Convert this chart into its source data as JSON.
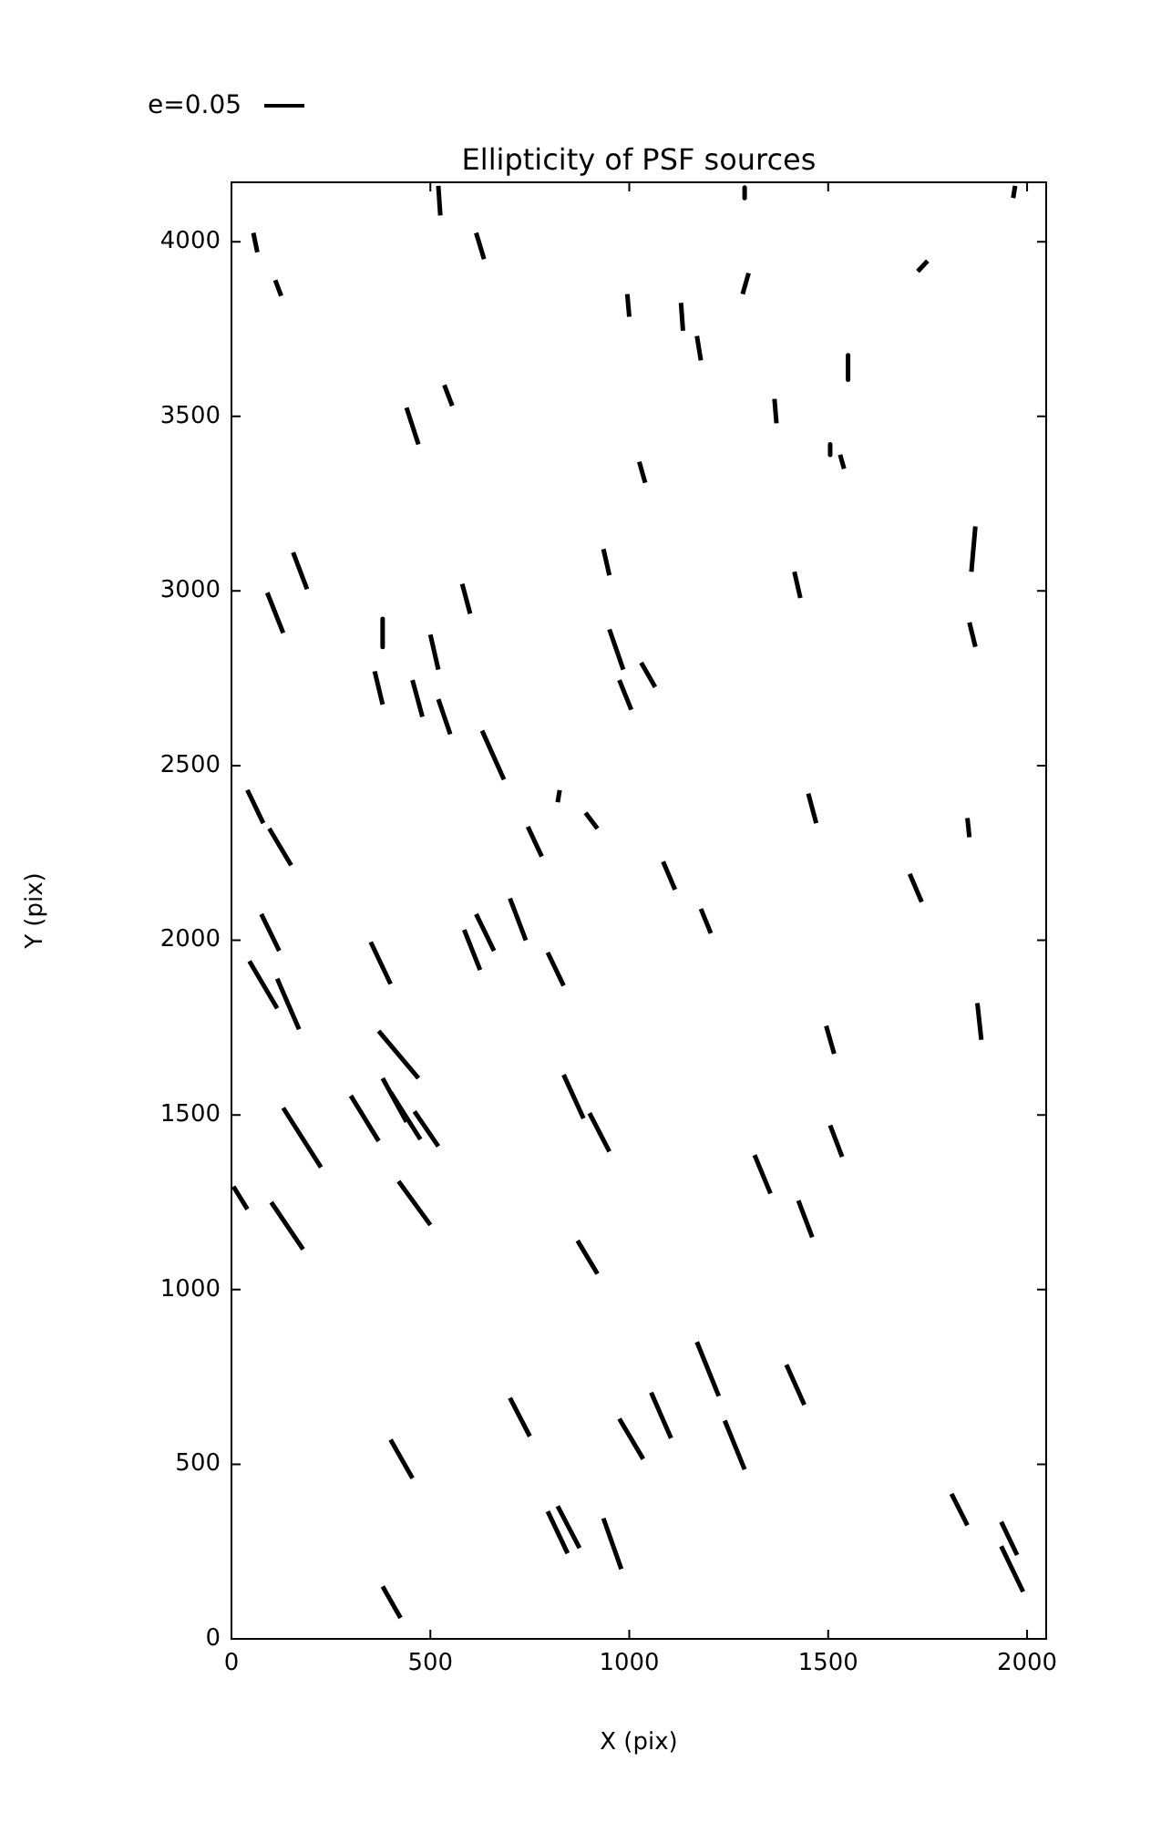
{
  "chart_data": {
    "type": "line",
    "title": "Ellipticity of PSF sources",
    "xlabel": "X (pix)",
    "ylabel": "Y (pix)",
    "xlim": [
      0,
      2048
    ],
    "ylim": [
      0,
      4170
    ],
    "xticks": [
      0,
      500,
      1000,
      1500,
      2000
    ],
    "yticks": [
      0,
      500,
      1000,
      1500,
      2000,
      2500,
      3000,
      3500,
      4000
    ],
    "marker": "none",
    "annotations": [
      "e=0.05"
    ],
    "series": [
      {
        "color": "#000000",
        "x": [
          55,
          65
        ],
        "values": [
          4025,
          3970
        ]
      },
      {
        "color": "#000000",
        "x": [
          110,
          125
        ],
        "values": [
          3890,
          3845
        ]
      },
      {
        "color": "#000000",
        "x": [
          520,
          525
        ],
        "values": [
          4160,
          4075
        ]
      },
      {
        "color": "#000000",
        "x": [
          615,
          635
        ],
        "values": [
          4025,
          3950
        ]
      },
      {
        "color": "#000000",
        "x": [
          995,
          1000
        ],
        "values": [
          3850,
          3785
        ]
      },
      {
        "color": "#000000",
        "x": [
          535,
          555
        ],
        "values": [
          3590,
          3530
        ]
      },
      {
        "color": "#000000",
        "x": [
          440,
          470
        ],
        "values": [
          3525,
          3420
        ]
      },
      {
        "color": "#000000",
        "x": [
          155,
          190
        ],
        "values": [
          3110,
          3005
        ]
      },
      {
        "color": "#000000",
        "x": [
          90,
          130
        ],
        "values": [
          2995,
          2880
        ]
      },
      {
        "color": "#000000",
        "x": [
          580,
          600
        ],
        "values": [
          3020,
          2935
        ]
      },
      {
        "color": "#000000",
        "x": [
          935,
          950
        ],
        "values": [
          3120,
          3045
        ]
      },
      {
        "color": "#000000",
        "x": [
          380,
          380
        ],
        "values": [
          2920,
          2840
        ]
      },
      {
        "color": "#000000",
        "x": [
          500,
          520
        ],
        "values": [
          2875,
          2775
        ]
      },
      {
        "color": "#000000",
        "x": [
          950,
          985
        ],
        "values": [
          2890,
          2775
        ]
      },
      {
        "color": "#000000",
        "x": [
          360,
          380
        ],
        "values": [
          2770,
          2675
        ]
      },
      {
        "color": "#000000",
        "x": [
          455,
          480
        ],
        "values": [
          2745,
          2640
        ]
      },
      {
        "color": "#000000",
        "x": [
          520,
          550
        ],
        "values": [
          2690,
          2590
        ]
      },
      {
        "color": "#000000",
        "x": [
          975,
          1005
        ],
        "values": [
          2745,
          2660
        ]
      },
      {
        "color": "#000000",
        "x": [
          630,
          685
        ],
        "values": [
          2600,
          2460
        ]
      },
      {
        "color": "#000000",
        "x": [
          40,
          80
        ],
        "values": [
          2430,
          2335
        ]
      },
      {
        "color": "#000000",
        "x": [
          95,
          150
        ],
        "values": [
          2320,
          2215
        ]
      },
      {
        "color": "#000000",
        "x": [
          825,
          820
        ],
        "values": [
          2430,
          2395
        ]
      },
      {
        "color": "#000000",
        "x": [
          890,
          920
        ],
        "values": [
          2365,
          2320
        ]
      },
      {
        "color": "#000000",
        "x": [
          745,
          780
        ],
        "values": [
          2325,
          2240
        ]
      },
      {
        "color": "#000000",
        "x": [
          1290,
          1290
        ],
        "values": [
          4155,
          4125
        ]
      },
      {
        "color": "#000000",
        "x": [
          1970,
          1965
        ],
        "values": [
          4160,
          4125
        ]
      },
      {
        "color": "#000000",
        "x": [
          1750,
          1725
        ],
        "values": [
          3945,
          3915
        ]
      },
      {
        "color": "#000000",
        "x": [
          1300,
          1285
        ],
        "values": [
          3910,
          3850
        ]
      },
      {
        "color": "#000000",
        "x": [
          1130,
          1135
        ],
        "values": [
          3825,
          3745
        ]
      },
      {
        "color": "#000000",
        "x": [
          1170,
          1180
        ],
        "values": [
          3730,
          3660
        ]
      },
      {
        "color": "#000000",
        "x": [
          1550,
          1550
        ],
        "values": [
          3675,
          3605
        ]
      },
      {
        "color": "#000000",
        "x": [
          1365,
          1370
        ],
        "values": [
          3550,
          3480
        ]
      },
      {
        "color": "#000000",
        "x": [
          1505,
          1505
        ],
        "values": [
          3420,
          3390
        ]
      },
      {
        "color": "#000000",
        "x": [
          1530,
          1540
        ],
        "values": [
          3390,
          3350
        ]
      },
      {
        "color": "#000000",
        "x": [
          1025,
          1040
        ],
        "values": [
          3370,
          3310
        ]
      },
      {
        "color": "#000000",
        "x": [
          1870,
          1860
        ],
        "values": [
          3185,
          3055
        ]
      },
      {
        "color": "#000000",
        "x": [
          1415,
          1430
        ],
        "values": [
          3055,
          2980
        ]
      },
      {
        "color": "#000000",
        "x": [
          1855,
          1870
        ],
        "values": [
          2910,
          2840
        ]
      },
      {
        "color": "#000000",
        "x": [
          1030,
          1065
        ],
        "values": [
          2795,
          2725
        ]
      },
      {
        "color": "#000000",
        "x": [
          1450,
          1470
        ],
        "values": [
          2420,
          2335
        ]
      },
      {
        "color": "#000000",
        "x": [
          1850,
          1855
        ],
        "values": [
          2350,
          2295
        ]
      },
      {
        "color": "#000000",
        "x": [
          1085,
          1115
        ],
        "values": [
          2225,
          2145
        ]
      },
      {
        "color": "#000000",
        "x": [
          1705,
          1735
        ],
        "values": [
          2190,
          2110
        ]
      },
      {
        "color": "#000000",
        "x": [
          1180,
          1205
        ],
        "values": [
          2090,
          2020
        ]
      },
      {
        "color": "#000000",
        "x": [
          75,
          120
        ],
        "values": [
          2075,
          1970
        ]
      },
      {
        "color": "#000000",
        "x": [
          45,
          115
        ],
        "values": [
          1940,
          1805
        ]
      },
      {
        "color": "#000000",
        "x": [
          115,
          170
        ],
        "values": [
          1890,
          1745
        ]
      },
      {
        "color": "#000000",
        "x": [
          350,
          400
        ],
        "values": [
          1995,
          1875
        ]
      },
      {
        "color": "#000000",
        "x": [
          585,
          625
        ],
        "values": [
          2030,
          1915
        ]
      },
      {
        "color": "#000000",
        "x": [
          615,
          660
        ],
        "values": [
          2075,
          1970
        ]
      },
      {
        "color": "#000000",
        "x": [
          700,
          740
        ],
        "values": [
          2120,
          2000
        ]
      },
      {
        "color": "#000000",
        "x": [
          795,
          835
        ],
        "values": [
          1965,
          1870
        ]
      },
      {
        "color": "#000000",
        "x": [
          370,
          470
        ],
        "values": [
          1740,
          1605
        ]
      },
      {
        "color": "#000000",
        "x": [
          130,
          225
        ],
        "values": [
          1520,
          1350
        ]
      },
      {
        "color": "#000000",
        "x": [
          300,
          370
        ],
        "values": [
          1555,
          1425
        ]
      },
      {
        "color": "#000000",
        "x": [
          380,
          440
        ],
        "values": [
          1605,
          1480
        ]
      },
      {
        "color": "#000000",
        "x": [
          400,
          475
        ],
        "values": [
          1565,
          1430
        ]
      },
      {
        "color": "#000000",
        "x": [
          460,
          520
        ],
        "values": [
          1510,
          1410
        ]
      },
      {
        "color": "#000000",
        "x": [
          835,
          885
        ],
        "values": [
          1615,
          1490
        ]
      },
      {
        "color": "#000000",
        "x": [
          900,
          950
        ],
        "values": [
          1505,
          1395
        ]
      },
      {
        "color": "#000000",
        "x": [
          5,
          40
        ],
        "values": [
          1295,
          1230
        ]
      },
      {
        "color": "#000000",
        "x": [
          100,
          180
        ],
        "values": [
          1250,
          1115
        ]
      },
      {
        "color": "#000000",
        "x": [
          420,
          500
        ],
        "values": [
          1310,
          1185
        ]
      },
      {
        "color": "#000000",
        "x": [
          870,
          920
        ],
        "values": [
          1140,
          1045
        ]
      },
      {
        "color": "#000000",
        "x": [
          700,
          750
        ],
        "values": [
          690,
          580
        ]
      },
      {
        "color": "#000000",
        "x": [
          975,
          1035
        ],
        "values": [
          630,
          515
        ]
      },
      {
        "color": "#000000",
        "x": [
          400,
          455
        ],
        "values": [
          570,
          460
        ]
      },
      {
        "color": "#000000",
        "x": [
          795,
          845
        ],
        "values": [
          365,
          245
        ]
      },
      {
        "color": "#000000",
        "x": [
          820,
          875
        ],
        "values": [
          380,
          260
        ]
      },
      {
        "color": "#000000",
        "x": [
          935,
          980
        ],
        "values": [
          345,
          200
        ]
      },
      {
        "color": "#000000",
        "x": [
          380,
          425
        ],
        "values": [
          150,
          60
        ]
      },
      {
        "color": "#000000",
        "x": [
          1495,
          1515
        ],
        "values": [
          1755,
          1675
        ]
      },
      {
        "color": "#000000",
        "x": [
          1875,
          1885
        ],
        "values": [
          1820,
          1715
        ]
      },
      {
        "color": "#000000",
        "x": [
          1505,
          1535
        ],
        "values": [
          1470,
          1380
        ]
      },
      {
        "color": "#000000",
        "x": [
          1315,
          1355
        ],
        "values": [
          1385,
          1275
        ]
      },
      {
        "color": "#000000",
        "x": [
          1425,
          1460
        ],
        "values": [
          1255,
          1150
        ]
      },
      {
        "color": "#000000",
        "x": [
          1170,
          1225
        ],
        "values": [
          850,
          695
        ]
      },
      {
        "color": "#000000",
        "x": [
          1055,
          1105
        ],
        "values": [
          705,
          575
        ]
      },
      {
        "color": "#000000",
        "x": [
          1240,
          1290
        ],
        "values": [
          625,
          485
        ]
      },
      {
        "color": "#000000",
        "x": [
          1395,
          1440
        ],
        "values": [
          785,
          670
        ]
      },
      {
        "color": "#000000",
        "x": [
          1810,
          1850
        ],
        "values": [
          415,
          325
        ]
      },
      {
        "color": "#000000",
        "x": [
          1935,
          1975
        ],
        "values": [
          335,
          240
        ]
      },
      {
        "color": "#000000",
        "x": [
          1935,
          1990
        ],
        "values": [
          265,
          135
        ]
      }
    ]
  }
}
